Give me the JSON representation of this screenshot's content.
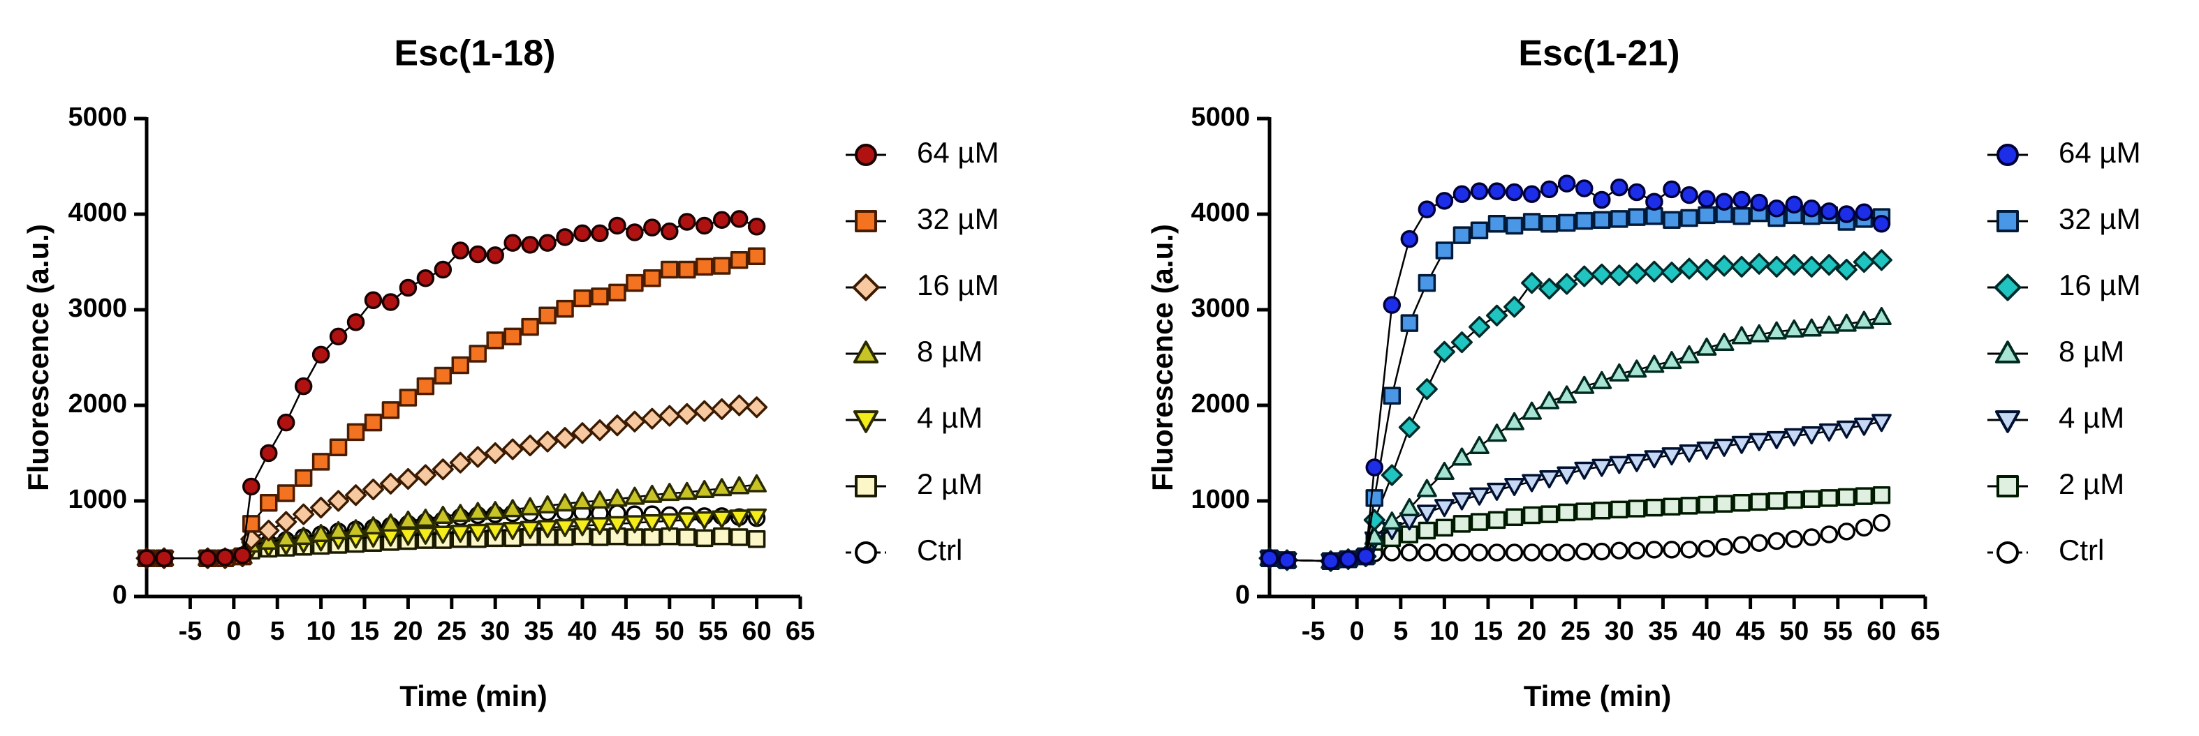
{
  "chart_data": [
    {
      "type": "scatter",
      "title": "Esc(1-18)",
      "xlabel": "Time (min)",
      "ylabel": "Fluorescence (a.u.)",
      "xlim": [
        -10,
        65
      ],
      "ylim": [
        0,
        5000
      ],
      "xticks": [
        "-5",
        "0",
        "5",
        "10",
        "15",
        "20",
        "25",
        "30",
        "35",
        "40",
        "45",
        "50",
        "55",
        "60",
        "65"
      ],
      "yticks": [
        "0",
        "1000",
        "2000",
        "3000",
        "4000",
        "5000"
      ],
      "legend_position": "right",
      "x": [
        -10,
        -8,
        -3,
        -1,
        1,
        2,
        4,
        6,
        8,
        10,
        12,
        14,
        16,
        18,
        20,
        22,
        24,
        26,
        28,
        30,
        32,
        34,
        36,
        38,
        40,
        42,
        44,
        46,
        48,
        50,
        52,
        54,
        56,
        58,
        60
      ],
      "series": [
        {
          "name": "64 µM",
          "marker": "circle",
          "fill": "#b01212",
          "stroke": "#1a0000",
          "values": [
            400,
            400,
            400,
            410,
            430,
            1150,
            1500,
            1820,
            2200,
            2530,
            2720,
            2870,
            3100,
            3080,
            3230,
            3330,
            3420,
            3620,
            3580,
            3570,
            3700,
            3680,
            3700,
            3760,
            3800,
            3800,
            3880,
            3810,
            3860,
            3820,
            3920,
            3880,
            3940,
            3950,
            3870
          ]
        },
        {
          "name": "32 µM",
          "marker": "square",
          "fill": "#f47320",
          "stroke": "#4a1c00",
          "values": [
            400,
            400,
            400,
            400,
            420,
            760,
            980,
            1080,
            1240,
            1410,
            1560,
            1720,
            1820,
            1950,
            2080,
            2200,
            2310,
            2420,
            2540,
            2680,
            2720,
            2820,
            2940,
            3010,
            3120,
            3140,
            3180,
            3280,
            3330,
            3420,
            3420,
            3450,
            3460,
            3520,
            3560
          ]
        },
        {
          "name": "16 µM",
          "marker": "diamond",
          "fill": "#f7c9a0",
          "stroke": "#3a1a00",
          "values": [
            400,
            400,
            400,
            400,
            420,
            600,
            690,
            780,
            860,
            930,
            1000,
            1060,
            1120,
            1180,
            1230,
            1270,
            1330,
            1400,
            1460,
            1500,
            1540,
            1580,
            1620,
            1660,
            1710,
            1740,
            1790,
            1830,
            1860,
            1890,
            1910,
            1940,
            1960,
            2000,
            1980
          ]
        },
        {
          "name": "8 µM",
          "marker": "triangle-up",
          "fill": "#c9c426",
          "stroke": "#2a2a00",
          "values": [
            400,
            400,
            400,
            400,
            420,
            540,
            570,
            600,
            620,
            650,
            680,
            700,
            730,
            760,
            790,
            810,
            840,
            860,
            880,
            890,
            910,
            930,
            950,
            970,
            990,
            1000,
            1020,
            1040,
            1060,
            1080,
            1090,
            1110,
            1130,
            1150,
            1170
          ]
        },
        {
          "name": "4 µM",
          "marker": "triangle-down",
          "fill": "#f5ec1c",
          "stroke": "#2a2a00",
          "values": [
            400,
            400,
            400,
            400,
            420,
            500,
            520,
            540,
            560,
            580,
            600,
            610,
            620,
            630,
            640,
            650,
            660,
            670,
            680,
            690,
            700,
            710,
            720,
            730,
            740,
            750,
            760,
            770,
            780,
            790,
            800,
            810,
            820,
            830,
            840
          ]
        },
        {
          "name": "2 µM",
          "marker": "square",
          "fill": "#fbf7c8",
          "stroke": "#1a1a00",
          "values": [
            400,
            400,
            400,
            400,
            420,
            480,
            500,
            510,
            520,
            530,
            540,
            550,
            560,
            570,
            580,
            590,
            590,
            600,
            600,
            610,
            610,
            620,
            620,
            620,
            630,
            620,
            630,
            620,
            620,
            630,
            620,
            610,
            630,
            620,
            600
          ]
        },
        {
          "name": "Ctrl",
          "marker": "circle",
          "fill": "#ffffff",
          "stroke": "#000000",
          "dashed": true,
          "values": [
            400,
            400,
            400,
            400,
            420,
            520,
            560,
            590,
            620,
            650,
            680,
            700,
            720,
            740,
            760,
            780,
            800,
            830,
            850,
            860,
            870,
            870,
            880,
            880,
            880,
            870,
            870,
            860,
            860,
            850,
            850,
            840,
            840,
            830,
            820
          ]
        }
      ]
    },
    {
      "type": "scatter",
      "title": "Esc(1-21)",
      "xlabel": "Time (min)",
      "ylabel": "Fluorescence (a.u.)",
      "xlim": [
        -10,
        65
      ],
      "ylim": [
        0,
        5000
      ],
      "xticks": [
        "-5",
        "0",
        "5",
        "10",
        "15",
        "20",
        "25",
        "30",
        "35",
        "40",
        "45",
        "50",
        "55",
        "60",
        "65"
      ],
      "yticks": [
        "0",
        "1000",
        "2000",
        "3000",
        "4000",
        "5000"
      ],
      "legend_position": "right",
      "x": [
        -10,
        -8,
        -3,
        -1,
        1,
        2,
        4,
        6,
        8,
        10,
        12,
        14,
        16,
        18,
        20,
        22,
        24,
        26,
        28,
        30,
        32,
        34,
        36,
        38,
        40,
        42,
        44,
        46,
        48,
        50,
        52,
        54,
        56,
        58,
        60
      ],
      "series": [
        {
          "name": "64 µM",
          "marker": "circle",
          "fill": "#1c2ee8",
          "stroke": "#00003a",
          "values": [
            400,
            380,
            370,
            390,
            420,
            1350,
            3050,
            3740,
            4050,
            4140,
            4210,
            4240,
            4240,
            4230,
            4210,
            4260,
            4320,
            4270,
            4150,
            4280,
            4230,
            4130,
            4260,
            4200,
            4160,
            4130,
            4150,
            4120,
            4060,
            4100,
            4060,
            4030,
            4000,
            4020,
            3900
          ]
        },
        {
          "name": "32 µM",
          "marker": "square",
          "fill": "#4a97e8",
          "stroke": "#001a3a",
          "values": [
            400,
            380,
            370,
            390,
            420,
            1030,
            2100,
            2860,
            3280,
            3620,
            3780,
            3830,
            3900,
            3880,
            3920,
            3900,
            3910,
            3930,
            3940,
            3950,
            3970,
            3980,
            3940,
            3960,
            3990,
            4000,
            3980,
            4010,
            3960,
            3990,
            3980,
            3990,
            3920,
            3950,
            3970
          ]
        },
        {
          "name": "16 µM",
          "marker": "diamond",
          "fill": "#20c4c0",
          "stroke": "#002a2a",
          "values": [
            400,
            380,
            370,
            390,
            420,
            800,
            1270,
            1770,
            2170,
            2560,
            2660,
            2820,
            2940,
            3030,
            3280,
            3220,
            3270,
            3350,
            3370,
            3360,
            3380,
            3400,
            3390,
            3430,
            3420,
            3460,
            3450,
            3480,
            3450,
            3470,
            3450,
            3470,
            3420,
            3500,
            3520
          ]
        },
        {
          "name": "8 µM",
          "marker": "triangle-up",
          "fill": "#a8e4d4",
          "stroke": "#002a20",
          "values": [
            400,
            380,
            370,
            390,
            420,
            620,
            780,
            920,
            1120,
            1300,
            1450,
            1570,
            1700,
            1820,
            1930,
            2040,
            2100,
            2200,
            2250,
            2330,
            2370,
            2420,
            2460,
            2520,
            2600,
            2650,
            2720,
            2740,
            2770,
            2790,
            2800,
            2830,
            2850,
            2880,
            2920
          ]
        },
        {
          "name": "4 µM",
          "marker": "triangle-down",
          "fill": "#c6d8f4",
          "stroke": "#001030",
          "values": [
            400,
            380,
            370,
            390,
            420,
            600,
            700,
            800,
            880,
            940,
            1010,
            1060,
            1110,
            1160,
            1200,
            1240,
            1280,
            1330,
            1360,
            1390,
            1410,
            1450,
            1480,
            1510,
            1540,
            1570,
            1600,
            1630,
            1650,
            1680,
            1700,
            1730,
            1760,
            1790,
            1830
          ]
        },
        {
          "name": "2 µM",
          "marker": "square",
          "fill": "#dff0e0",
          "stroke": "#001a00",
          "values": [
            400,
            380,
            370,
            390,
            420,
            570,
            610,
            650,
            690,
            720,
            760,
            780,
            800,
            830,
            850,
            860,
            880,
            890,
            900,
            910,
            920,
            930,
            940,
            950,
            960,
            970,
            980,
            990,
            1000,
            1010,
            1020,
            1030,
            1040,
            1050,
            1060
          ]
        },
        {
          "name": "Ctrl",
          "marker": "circle",
          "fill": "#ffffff",
          "stroke": "#000000",
          "dashed": true,
          "values": [
            400,
            380,
            370,
            390,
            420,
            450,
            460,
            460,
            460,
            460,
            460,
            460,
            460,
            460,
            460,
            460,
            460,
            470,
            470,
            480,
            480,
            490,
            490,
            490,
            500,
            520,
            540,
            560,
            580,
            600,
            620,
            650,
            680,
            720,
            770
          ]
        }
      ]
    }
  ]
}
